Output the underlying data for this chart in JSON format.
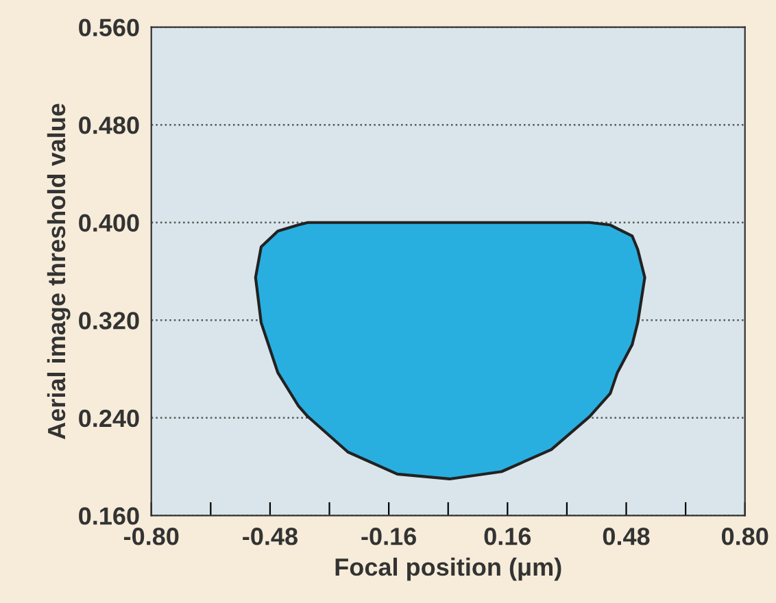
{
  "chart_data": {
    "type": "area",
    "xlabel": "Focal position (μm)",
    "ylabel": "Aerial image threshold value",
    "series": [
      {
        "color": "#29aee0",
        "x": [
          -0.519,
          -0.504,
          -0.459,
          -0.404,
          -0.378,
          -0.27,
          -0.137,
          0.004,
          0.144,
          0.278,
          0.381,
          0.437,
          0.456,
          0.496,
          0.511,
          0.53,
          0.511,
          0.496,
          0.456,
          0.437,
          0.381,
          0.278,
          0.144,
          0.004,
          -0.137,
          -0.27,
          -0.378,
          -0.404,
          -0.459,
          -0.504
        ],
        "values": [
          0.355,
          0.38,
          0.393,
          0.398,
          0.4,
          0.4,
          0.4,
          0.4,
          0.4,
          0.4,
          0.4,
          0.398,
          0.395,
          0.389,
          0.378,
          0.355,
          0.318,
          0.3,
          0.277,
          0.26,
          0.241,
          0.214,
          0.196,
          0.19,
          0.194,
          0.212,
          0.241,
          0.25,
          0.277,
          0.318
        ]
      }
    ],
    "xlim": [
      -0.8,
      0.8
    ],
    "xticks": [
      {
        "value": -0.8,
        "label": "-0.80"
      },
      {
        "value": -0.64,
        "label": null
      },
      {
        "value": -0.48,
        "label": "-0.48"
      },
      {
        "value": -0.32,
        "label": null
      },
      {
        "value": -0.16,
        "label": "-0.16"
      },
      {
        "value": 0,
        "label": null
      },
      {
        "value": 0.16,
        "label": "0.16"
      },
      {
        "value": 0.32,
        "label": null
      },
      {
        "value": 0.48,
        "label": "0.48"
      },
      {
        "value": 0.64,
        "label": null
      },
      {
        "value": 0.8,
        "label": "0.80"
      }
    ],
    "ylim": [
      0.16,
      0.56
    ],
    "yticks": [
      {
        "value": 0.16,
        "label": "0.160"
      },
      {
        "value": 0.24,
        "label": "0.240"
      },
      {
        "value": 0.32,
        "label": "0.320"
      },
      {
        "value": 0.4,
        "label": "0.400"
      },
      {
        "value": 0.48,
        "label": "0.480"
      },
      {
        "value": 0.56,
        "label": "0.560"
      }
    ],
    "grid": "y",
    "line_style": "solid"
  }
}
